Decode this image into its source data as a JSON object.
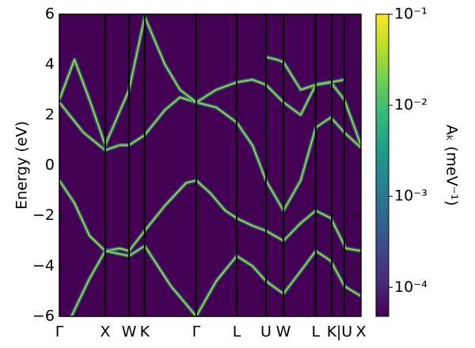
{
  "chart_data": {
    "type": "line",
    "ylabel": "Energy (eV)",
    "colorbar_label": "Aₖ (meV⁻¹)",
    "ylim": [
      -6,
      6
    ],
    "yticks": [
      {
        "value": -6,
        "label": "−6"
      },
      {
        "value": -4,
        "label": "−4"
      },
      {
        "value": -2,
        "label": "−2"
      },
      0,
      2,
      4,
      6
    ],
    "xlim": [
      0,
      1
    ],
    "xticks": [
      {
        "value": 0,
        "label": "Γ"
      },
      {
        "value": 0.152,
        "label": "X"
      },
      {
        "value": 0.231,
        "label": "W"
      },
      {
        "value": 0.283,
        "label": "K"
      },
      {
        "value": 0.454,
        "label": "Γ"
      },
      {
        "value": 0.588,
        "label": "L"
      },
      {
        "value": 0.685,
        "label": "U"
      },
      {
        "value": 0.743,
        "label": "W"
      },
      {
        "value": 0.85,
        "label": "L"
      },
      {
        "value": 0.903,
        "label": "K"
      },
      {
        "value": 0.945,
        "label": "|U"
      },
      {
        "value": 1,
        "label": "X"
      }
    ],
    "background": "#440154",
    "line_color": "#b5de2b",
    "glow_color": "#21918c",
    "symmetry_line_color": "#000000",
    "clim": [
      4.8e-05,
      0.1
    ],
    "clog": true,
    "colormap": [
      "#440154",
      "#482878",
      "#3e4989",
      "#31688e",
      "#26828e",
      "#1f9e89",
      "#35b779",
      "#6ece58",
      "#b5de2b",
      "#fde725"
    ],
    "cticks": [
      {
        "value": 0.0001,
        "label": "10⁻⁴"
      },
      {
        "value": 0.001,
        "label": "10⁻³"
      },
      {
        "value": 0.01,
        "label": "10⁻²"
      },
      {
        "value": 0.1,
        "label": "10⁻¹"
      }
    ],
    "series": [
      {
        "x": [
          0,
          0.05,
          0.1,
          0.152,
          0.2,
          0.231,
          0.283,
          0.35,
          0.42,
          0.454,
          0.5,
          0.55,
          0.588,
          0.64,
          0.685,
          0.743,
          0.8,
          0.85,
          0.9,
          0.95,
          1.0
        ],
        "values": [
          -0.6,
          -1.5,
          -2.8,
          -3.4,
          -3.3,
          -3.4,
          -2.6,
          -1.6,
          -0.7,
          -0.6,
          -1.1,
          -1.8,
          -2.1,
          -2.4,
          -2.6,
          -3.0,
          -2.3,
          -1.8,
          -2.1,
          -3.3,
          -3.4
        ]
      },
      {
        "x": [
          0.04,
          0.1,
          0.152,
          0.231,
          0.283,
          0.37,
          0.454,
          0.52,
          0.588,
          0.64,
          0.685,
          0.743,
          0.8,
          0.85,
          0.9,
          0.945,
          1.0
        ],
        "values": [
          -6,
          -4.5,
          -3.4,
          -3.6,
          -3.2,
          -4.8,
          -6,
          -4.6,
          -3.6,
          -4.0,
          -4.6,
          -5.1,
          -4.2,
          -3.4,
          -3.8,
          -4.8,
          -5.2
        ]
      },
      {
        "x": [
          0,
          0.08,
          0.152,
          0.2,
          0.231,
          0.283,
          0.35,
          0.4,
          0.454,
          0.52,
          0.588,
          0.64,
          0.685,
          0.743,
          0.8,
          0.85,
          0.9,
          0.945,
          1.0
        ],
        "values": [
          2.5,
          1.3,
          0.6,
          0.8,
          0.8,
          1.2,
          2.2,
          2.7,
          2.5,
          2.3,
          1.7,
          0.8,
          -0.6,
          -1.8,
          -0.6,
          1.5,
          1.9,
          1.3,
          0.7
        ]
      },
      {
        "x": [
          0,
          0.05,
          0.1,
          0.152,
          0.231,
          0.283,
          0.35,
          0.4,
          0.454,
          0.52,
          0.588,
          0.64,
          0.685,
          0.743,
          0.8,
          0.85,
          0.9,
          0.945,
          1.0
        ],
        "values": [
          2.6,
          4.2,
          2.6,
          0.8,
          3.0,
          5.9,
          4.0,
          3.0,
          2.5,
          3.0,
          3.3,
          3.4,
          3.2,
          2.5,
          2.0,
          3.2,
          3.3,
          2.6,
          0.8
        ]
      },
      {
        "x": [
          0.685,
          0.72,
          0.743,
          0.8,
          0.85,
          0.9,
          0.945
        ],
        "values": [
          4.3,
          4.2,
          4.1,
          3.0,
          3.2,
          3.3,
          3.4
        ]
      }
    ]
  }
}
